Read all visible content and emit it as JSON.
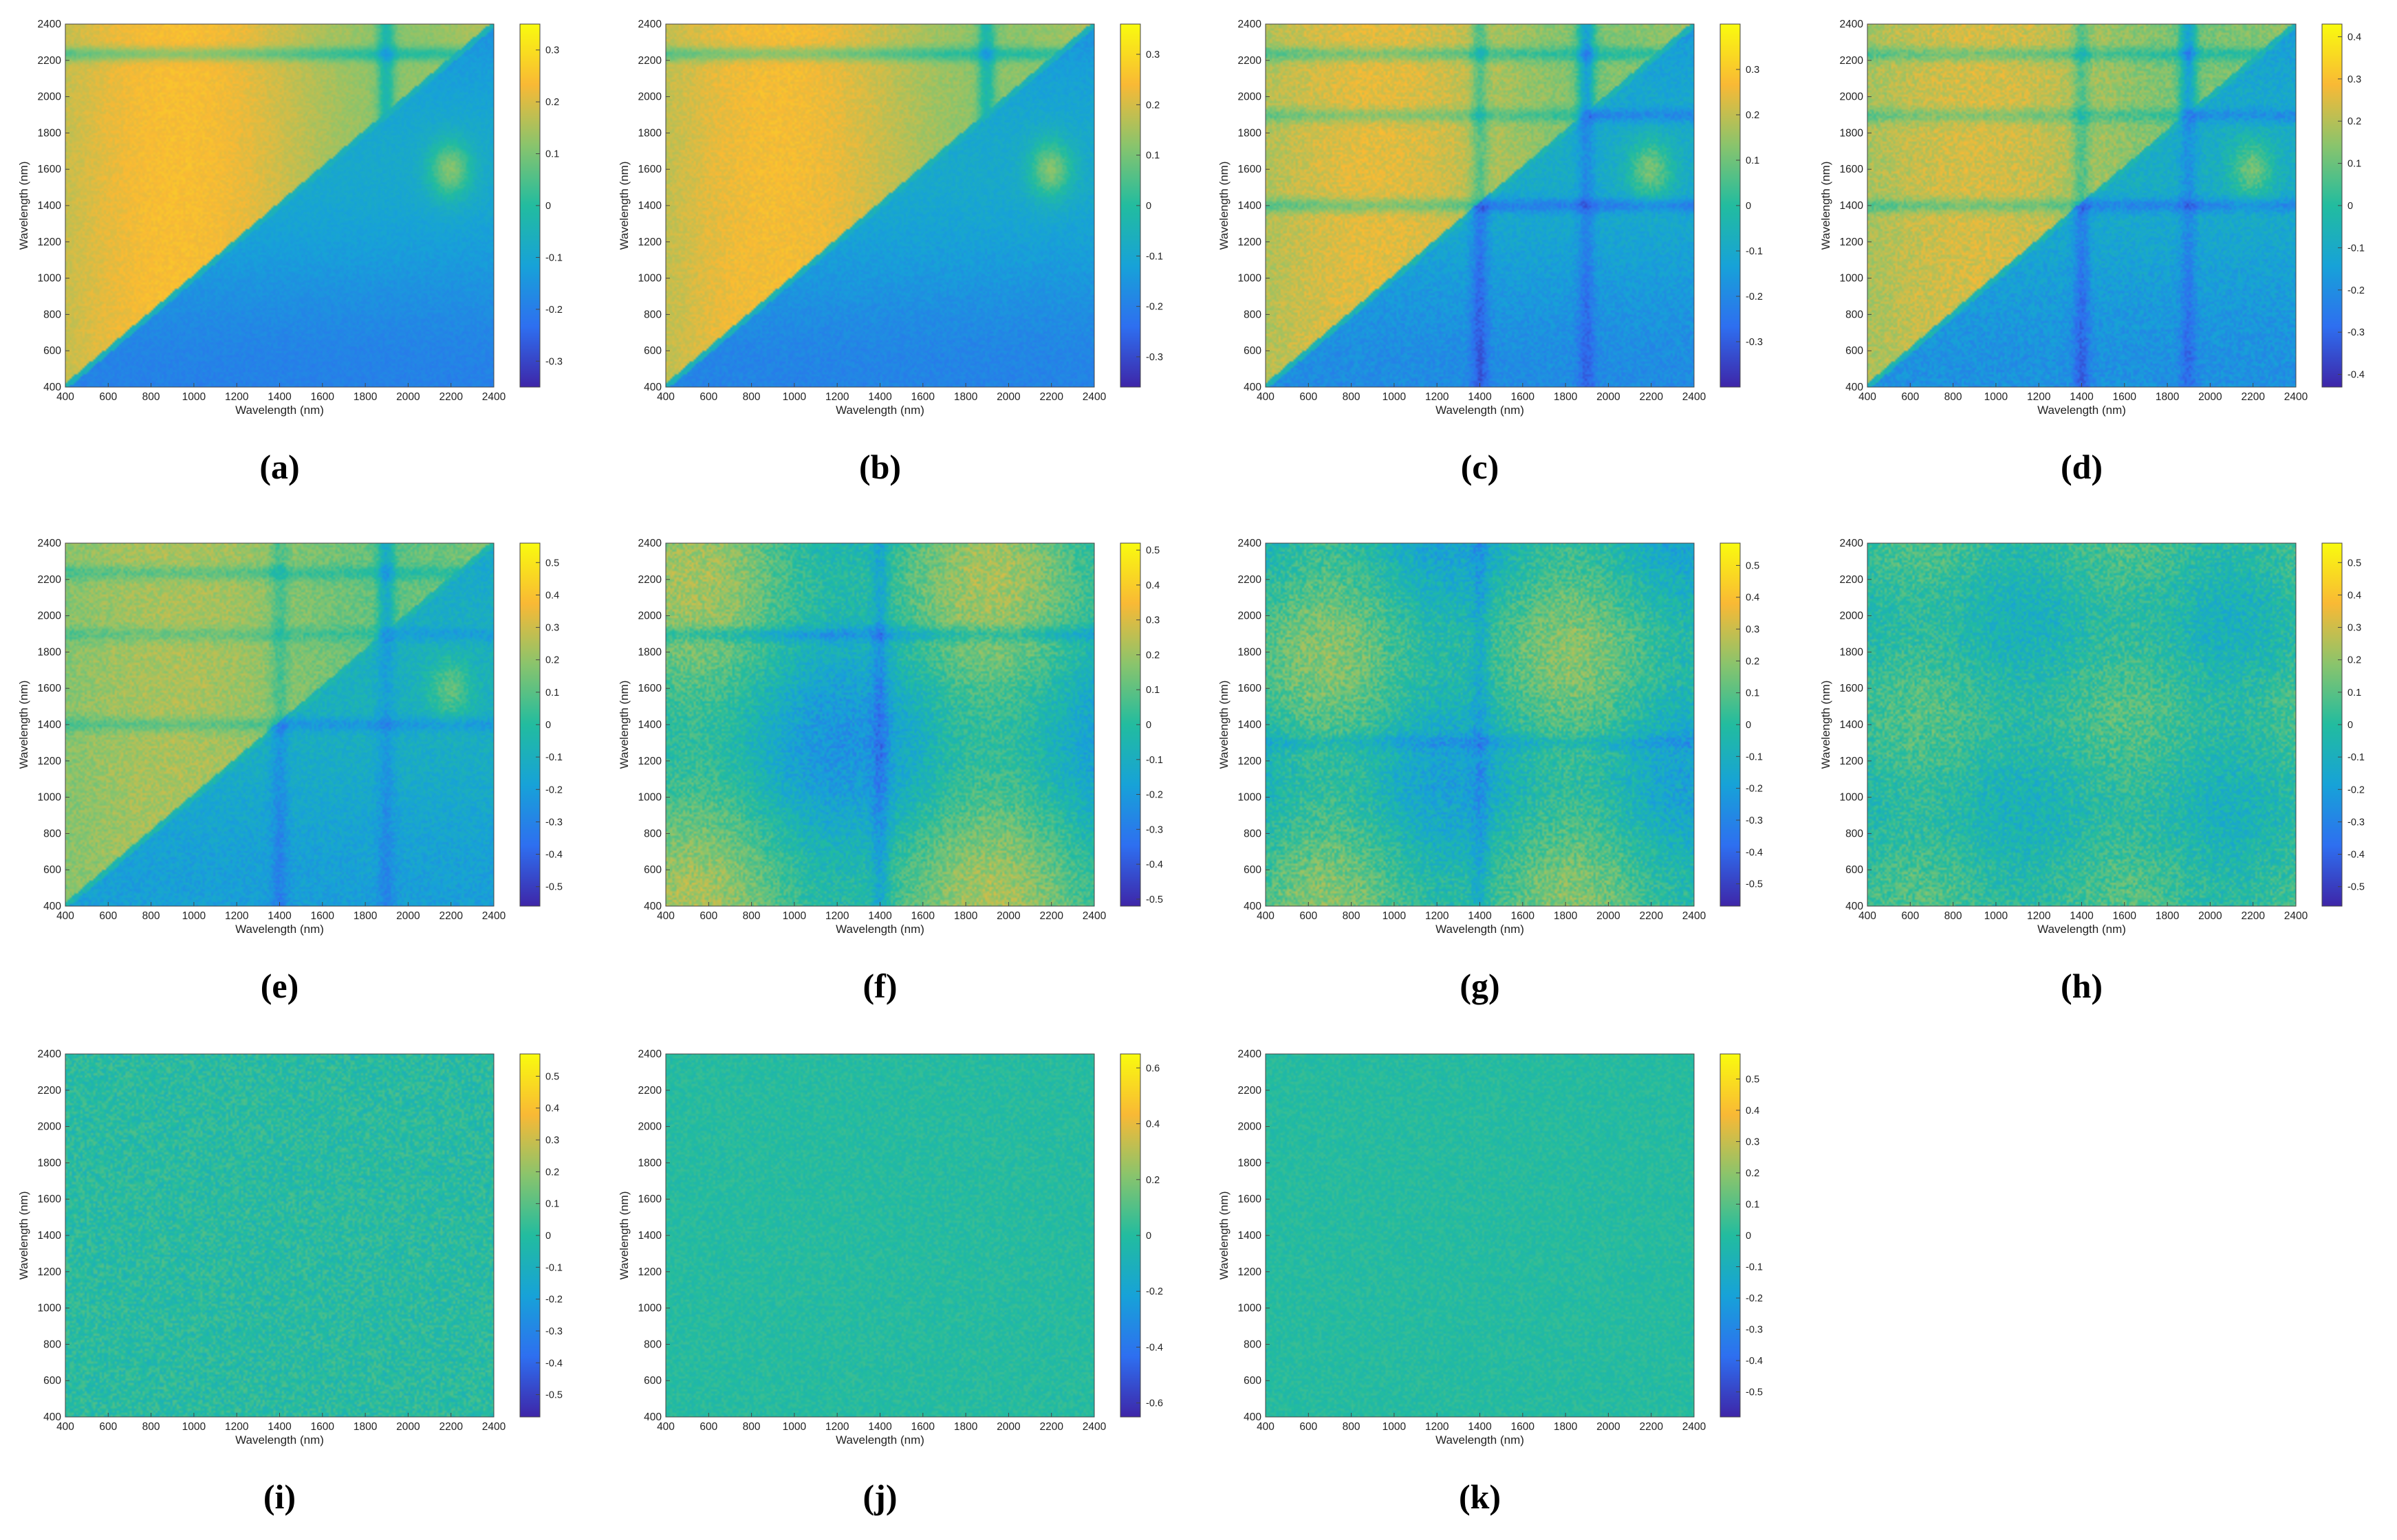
{
  "colors": {
    "colormap": [
      "#3e26a8",
      "#2e6ff0",
      "#17a2d8",
      "#22bc9f",
      "#8ac46c",
      "#f9b935",
      "#f9fb0e"
    ],
    "axis": "#222222",
    "background": "#ffffff"
  },
  "chart_data": [
    {
      "type": "heatmap",
      "label": "(a)",
      "xlabel": "Wavelength (nm)",
      "ylabel": "Wavelength (nm)",
      "xticks": [
        "400",
        "600",
        "800",
        "1000",
        "1200",
        "1400",
        "1600",
        "1800",
        "2000",
        "2200",
        "2400"
      ],
      "yticks": [
        "400",
        "600",
        "800",
        "1000",
        "1200",
        "1400",
        "1600",
        "1800",
        "2000",
        "2200",
        "2400"
      ],
      "xlim": [
        400,
        2400
      ],
      "ylim": [
        400,
        2400
      ],
      "clim": [
        -0.35,
        0.35
      ],
      "colorbar_ticks": [
        "-0.3",
        "-0.2",
        "-0.1",
        "0",
        "0.1",
        "0.2",
        "0.3"
      ],
      "pattern": "structured_triangle",
      "noise": 0.02
    },
    {
      "type": "heatmap",
      "label": "(b)",
      "xlabel": "Wavelength (nm)",
      "ylabel": "Wavelength (nm)",
      "xticks": [
        "400",
        "600",
        "800",
        "1000",
        "1200",
        "1400",
        "1600",
        "1800",
        "2000",
        "2200",
        "2400"
      ],
      "yticks": [
        "400",
        "600",
        "800",
        "1000",
        "1200",
        "1400",
        "1600",
        "1800",
        "2000",
        "2200",
        "2400"
      ],
      "xlim": [
        400,
        2400
      ],
      "ylim": [
        400,
        2400
      ],
      "clim": [
        -0.36,
        0.36
      ],
      "colorbar_ticks": [
        "-0.3",
        "-0.2",
        "-0.1",
        "0",
        "0.1",
        "0.2",
        "0.3"
      ],
      "pattern": "structured_triangle",
      "noise": 0.025
    },
    {
      "type": "heatmap",
      "label": "(c)",
      "xlabel": "Wavelength (nm)",
      "ylabel": "Wavelength (nm)",
      "xticks": [
        "400",
        "600",
        "800",
        "1000",
        "1200",
        "1400",
        "1600",
        "1800",
        "2000",
        "2200",
        "2400"
      ],
      "yticks": [
        "400",
        "600",
        "800",
        "1000",
        "1200",
        "1400",
        "1600",
        "1800",
        "2000",
        "2200",
        "2400"
      ],
      "xlim": [
        400,
        2400
      ],
      "ylim": [
        400,
        2400
      ],
      "clim": [
        -0.4,
        0.4
      ],
      "colorbar_ticks": [
        "-0.3",
        "-0.2",
        "-0.1",
        "0",
        "0.1",
        "0.2",
        "0.3"
      ],
      "pattern": "structured_triangle_bands",
      "noise": 0.04
    },
    {
      "type": "heatmap",
      "label": "(d)",
      "xlabel": "Wavelength (nm)",
      "ylabel": "Wavelength (nm)",
      "xticks": [
        "400",
        "600",
        "800",
        "1000",
        "1200",
        "1400",
        "1600",
        "1800",
        "2000",
        "2200",
        "2400"
      ],
      "yticks": [
        "400",
        "600",
        "800",
        "1000",
        "1200",
        "1400",
        "1600",
        "1800",
        "2000",
        "2200",
        "2400"
      ],
      "xlim": [
        400,
        2400
      ],
      "ylim": [
        400,
        2400
      ],
      "clim": [
        -0.43,
        0.43
      ],
      "colorbar_ticks": [
        "-0.4",
        "-0.3",
        "-0.2",
        "-0.1",
        "0",
        "0.1",
        "0.2",
        "0.3",
        "0.4"
      ],
      "pattern": "blocky_triangle",
      "noise": 0.05
    },
    {
      "type": "heatmap",
      "label": "(e)",
      "xlabel": "Wavelength (nm)",
      "ylabel": "Wavelength (nm)",
      "xticks": [
        "400",
        "600",
        "800",
        "1000",
        "1200",
        "1400",
        "1600",
        "1800",
        "2000",
        "2200",
        "2400"
      ],
      "yticks": [
        "400",
        "600",
        "800",
        "1000",
        "1200",
        "1400",
        "1600",
        "1800",
        "2000",
        "2200",
        "2400"
      ],
      "xlim": [
        400,
        2400
      ],
      "ylim": [
        400,
        2400
      ],
      "clim": [
        -0.56,
        0.56
      ],
      "colorbar_ticks": [
        "-0.5",
        "-0.4",
        "-0.3",
        "-0.2",
        "-0.1",
        "0",
        "0.1",
        "0.2",
        "0.3",
        "0.4",
        "0.5"
      ],
      "pattern": "blocky_triangle",
      "noise": 0.06
    },
    {
      "type": "heatmap",
      "label": "(f)",
      "xlabel": "Wavelength (nm)",
      "ylabel": "Wavelength (nm)",
      "xticks": [
        "400",
        "600",
        "800",
        "1000",
        "1200",
        "1400",
        "1600",
        "1800",
        "2000",
        "2200",
        "2400"
      ],
      "yticks": [
        "400",
        "600",
        "800",
        "1000",
        "1200",
        "1400",
        "1600",
        "1800",
        "2000",
        "2200",
        "2400"
      ],
      "xlim": [
        400,
        2400
      ],
      "ylim": [
        400,
        2400
      ],
      "clim": [
        -0.52,
        0.52
      ],
      "colorbar_ticks": [
        "-0.5",
        "-0.4",
        "-0.3",
        "-0.2",
        "-0.1",
        "0",
        "0.1",
        "0.2",
        "0.3",
        "0.4",
        "0.5"
      ],
      "pattern": "blocky",
      "noise": 0.08
    },
    {
      "type": "heatmap",
      "label": "(g)",
      "xlabel": "Wavelength (nm)",
      "ylabel": "Wavelength (nm)",
      "xticks": [
        "400",
        "600",
        "800",
        "1000",
        "1200",
        "1400",
        "1600",
        "1800",
        "2000",
        "2200",
        "2400"
      ],
      "yticks": [
        "400",
        "600",
        "800",
        "1000",
        "1200",
        "1400",
        "1600",
        "1800",
        "2000",
        "2200",
        "2400"
      ],
      "xlim": [
        400,
        2400
      ],
      "ylim": [
        400,
        2400
      ],
      "clim": [
        -0.57,
        0.57
      ],
      "colorbar_ticks": [
        "-0.5",
        "-0.4",
        "-0.3",
        "-0.2",
        "-0.1",
        "0",
        "0.1",
        "0.2",
        "0.3",
        "0.4",
        "0.5"
      ],
      "pattern": "blocky_noisy",
      "noise": 0.1
    },
    {
      "type": "heatmap",
      "label": "(h)",
      "xlabel": "Wavelength (nm)",
      "ylabel": "Wavelength (nm)",
      "xticks": [
        "400",
        "600",
        "800",
        "1000",
        "1200",
        "1400",
        "1600",
        "1800",
        "2000",
        "2200",
        "2400"
      ],
      "yticks": [
        "400",
        "600",
        "800",
        "1000",
        "1200",
        "1400",
        "1600",
        "1800",
        "2000",
        "2200",
        "2400"
      ],
      "xlim": [
        400,
        2400
      ],
      "ylim": [
        400,
        2400
      ],
      "clim": [
        -0.56,
        0.56
      ],
      "colorbar_ticks": [
        "-0.5",
        "-0.4",
        "-0.3",
        "-0.2",
        "-0.1",
        "0",
        "0.1",
        "0.2",
        "0.3",
        "0.4",
        "0.5"
      ],
      "pattern": "noisy_faint",
      "noise": 0.1
    },
    {
      "type": "heatmap",
      "label": "(i)",
      "xlabel": "Wavelength (nm)",
      "ylabel": "Wavelength (nm)",
      "xticks": [
        "400",
        "600",
        "800",
        "1000",
        "1200",
        "1400",
        "1600",
        "1800",
        "2000",
        "2200",
        "2400"
      ],
      "yticks": [
        "400",
        "600",
        "800",
        "1000",
        "1200",
        "1400",
        "1600",
        "1800",
        "2000",
        "2200",
        "2400"
      ],
      "xlim": [
        400,
        2400
      ],
      "ylim": [
        400,
        2400
      ],
      "clim": [
        -0.57,
        0.57
      ],
      "colorbar_ticks": [
        "-0.5",
        "-0.4",
        "-0.3",
        "-0.2",
        "-0.1",
        "0",
        "0.1",
        "0.2",
        "0.3",
        "0.4",
        "0.5"
      ],
      "pattern": "noise",
      "noise": 0.09
    },
    {
      "type": "heatmap",
      "label": "(j)",
      "xlabel": "Wavelength (nm)",
      "ylabel": "Wavelength (nm)",
      "xticks": [
        "400",
        "600",
        "800",
        "1000",
        "1200",
        "1400",
        "1600",
        "1800",
        "2000",
        "2200",
        "2400"
      ],
      "yticks": [
        "400",
        "600",
        "800",
        "1000",
        "1200",
        "1400",
        "1600",
        "1800",
        "2000",
        "2200",
        "2400"
      ],
      "xlim": [
        400,
        2400
      ],
      "ylim": [
        400,
        2400
      ],
      "clim": [
        -0.65,
        0.65
      ],
      "colorbar_ticks": [
        "-0.6",
        "-0.4",
        "-0.2",
        "0",
        "0.2",
        "0.4",
        "0.6"
      ],
      "pattern": "noise",
      "noise": 0.06
    },
    {
      "type": "heatmap",
      "label": "(k)",
      "xlabel": "Wavelength (nm)",
      "ylabel": "Wavelength (nm)",
      "xticks": [
        "400",
        "600",
        "800",
        "1000",
        "1200",
        "1400",
        "1600",
        "1800",
        "2000",
        "2200",
        "2400"
      ],
      "yticks": [
        "400",
        "600",
        "800",
        "1000",
        "1200",
        "1400",
        "1600",
        "1800",
        "2000",
        "2200",
        "2400"
      ],
      "xlim": [
        400,
        2400
      ],
      "ylim": [
        400,
        2400
      ],
      "clim": [
        -0.58,
        0.58
      ],
      "colorbar_ticks": [
        "-0.5",
        "-0.4",
        "-0.3",
        "-0.2",
        "-0.1",
        "0",
        "0.1",
        "0.2",
        "0.3",
        "0.4",
        "0.5"
      ],
      "pattern": "noise",
      "noise": 0.05
    }
  ]
}
